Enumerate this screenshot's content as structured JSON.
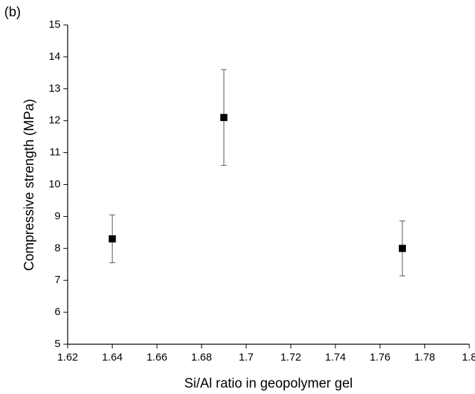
{
  "chart_data": {
    "type": "scatter",
    "annotation": "(b)",
    "x_label": "Si/Al ratio in geopolymer gel",
    "y_label": "Compressive strength (MPa)",
    "x": [
      1.64,
      1.69,
      1.77
    ],
    "values": [
      8.3,
      12.1,
      8.0
    ],
    "errors": [
      0.75,
      1.5,
      0.86
    ],
    "color": "#000000",
    "xlim": [
      1.62,
      1.8
    ],
    "xticks": [
      1.62,
      1.64,
      1.66,
      1.68,
      1.7,
      1.72,
      1.74,
      1.76,
      1.78,
      1.8
    ],
    "ylim": [
      5,
      15
    ],
    "yticks": [
      5,
      6,
      7,
      8,
      9,
      10,
      11,
      12,
      13,
      14,
      15
    ],
    "grid": false
  }
}
